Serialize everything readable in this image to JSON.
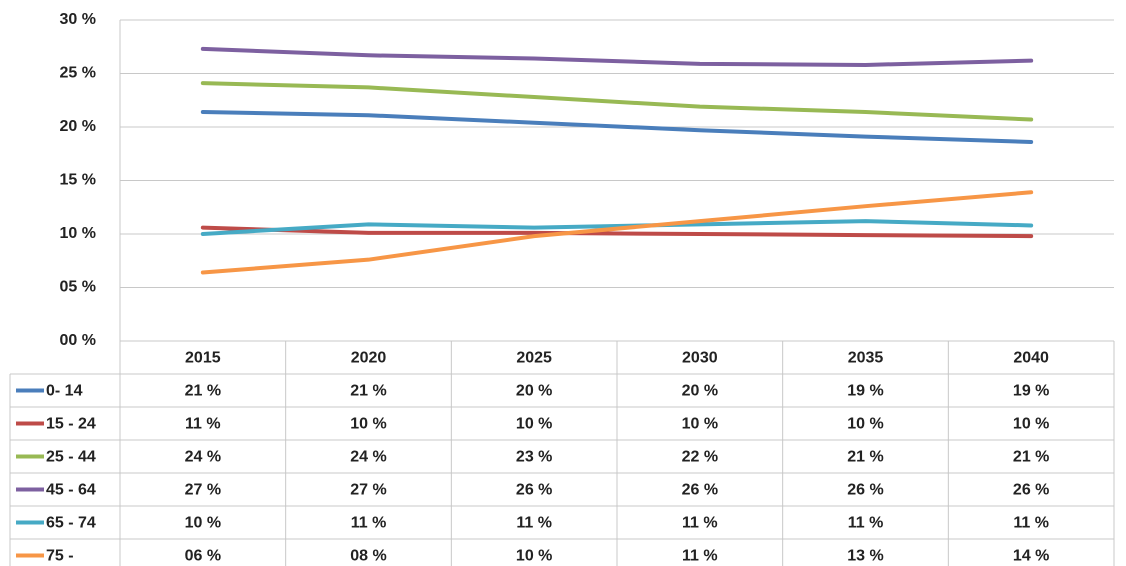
{
  "chart_data": {
    "type": "line",
    "categories": [
      "2015",
      "2020",
      "2025",
      "2030",
      "2035",
      "2040"
    ],
    "ylim": [
      0,
      30
    ],
    "yticks": [
      {
        "value": 0,
        "label": "00 %"
      },
      {
        "value": 5,
        "label": "05 %"
      },
      {
        "value": 10,
        "label": "10 %"
      },
      {
        "value": 15,
        "label": "15 %"
      },
      {
        "value": 20,
        "label": "20 %"
      },
      {
        "value": 25,
        "label": "25 %"
      },
      {
        "value": 30,
        "label": "30 %"
      }
    ],
    "grid": true,
    "series": [
      {
        "name": "0- 14",
        "color": "#4a7ebb",
        "values": [
          21.4,
          21.1,
          20.4,
          19.7,
          19.1,
          18.6
        ],
        "value_labels": [
          "21 %",
          "21 %",
          "20 %",
          "20 %",
          "19 %",
          "19 %"
        ]
      },
      {
        "name": "15 - 24",
        "color": "#be4b48",
        "values": [
          10.6,
          10.1,
          10.1,
          10.0,
          9.9,
          9.8
        ],
        "value_labels": [
          "11 %",
          "10 %",
          "10 %",
          "10 %",
          "10 %",
          "10 %"
        ]
      },
      {
        "name": "25 - 44",
        "color": "#98b954",
        "values": [
          24.1,
          23.7,
          22.8,
          21.9,
          21.4,
          20.7
        ],
        "value_labels": [
          "24 %",
          "24 %",
          "23 %",
          "22 %",
          "21 %",
          "21 %"
        ]
      },
      {
        "name": "45 - 64",
        "color": "#7d60a0",
        "values": [
          27.3,
          26.7,
          26.4,
          25.9,
          25.8,
          26.2
        ],
        "value_labels": [
          "27 %",
          "27 %",
          "26 %",
          "26 %",
          "26 %",
          "26 %"
        ]
      },
      {
        "name": "65 - 74",
        "color": "#46aac5",
        "values": [
          10.0,
          10.9,
          10.6,
          10.9,
          11.2,
          10.8
        ],
        "value_labels": [
          "10 %",
          "11 %",
          "11 %",
          "11 %",
          "11 %",
          "11 %"
        ]
      },
      {
        "name": "75 -",
        "color": "#f79646",
        "values": [
          6.4,
          7.6,
          9.8,
          11.2,
          12.6,
          13.9
        ],
        "value_labels": [
          "06 %",
          "08 %",
          "10 %",
          "11 %",
          "13 %",
          "14 %"
        ]
      }
    ]
  }
}
